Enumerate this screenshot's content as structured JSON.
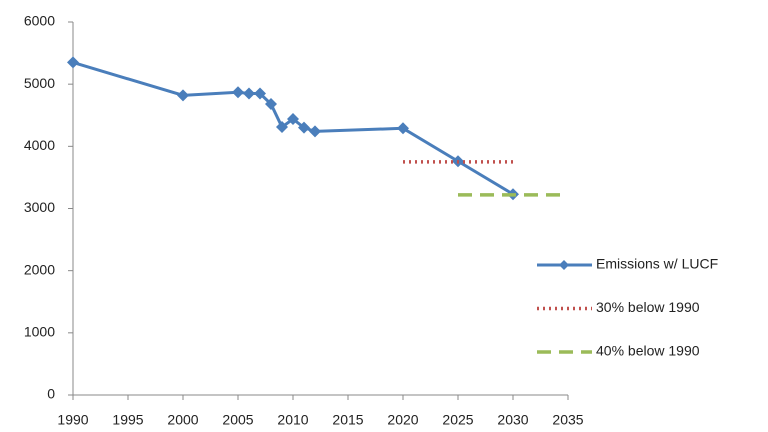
{
  "chart_data": {
    "type": "line",
    "xlim": [
      1990,
      2035
    ],
    "xticks": [
      1990,
      1995,
      2000,
      2005,
      2010,
      2015,
      2020,
      2025,
      2030,
      2035
    ],
    "ylim": [
      0,
      6000
    ],
    "yticks": [
      0,
      1000,
      2000,
      3000,
      4000,
      5000,
      6000
    ],
    "grid": false,
    "legend": "right",
    "series": [
      {
        "name": "Emissions w/ LUCF",
        "color": "#4a7ebb",
        "style": "solid",
        "markers": true,
        "x": [
          1990,
          2000,
          2005,
          2006,
          2007,
          2008,
          2009,
          2010,
          2011,
          2012,
          2020,
          2025,
          2030
        ],
        "values": [
          5350,
          4820,
          4870,
          4850,
          4850,
          4680,
          4310,
          4440,
          4300,
          4240,
          4290,
          3760,
          3230
        ]
      },
      {
        "name": "30% below 1990",
        "color": "#c0504d",
        "style": "dotted",
        "markers": false,
        "x": [
          2020,
          2030
        ],
        "values": [
          3750,
          3750
        ]
      },
      {
        "name": "40% below 1990",
        "color": "#9bbb59",
        "style": "dashed",
        "markers": false,
        "x": [
          2025,
          2035
        ],
        "values": [
          3220,
          3220
        ]
      }
    ]
  }
}
